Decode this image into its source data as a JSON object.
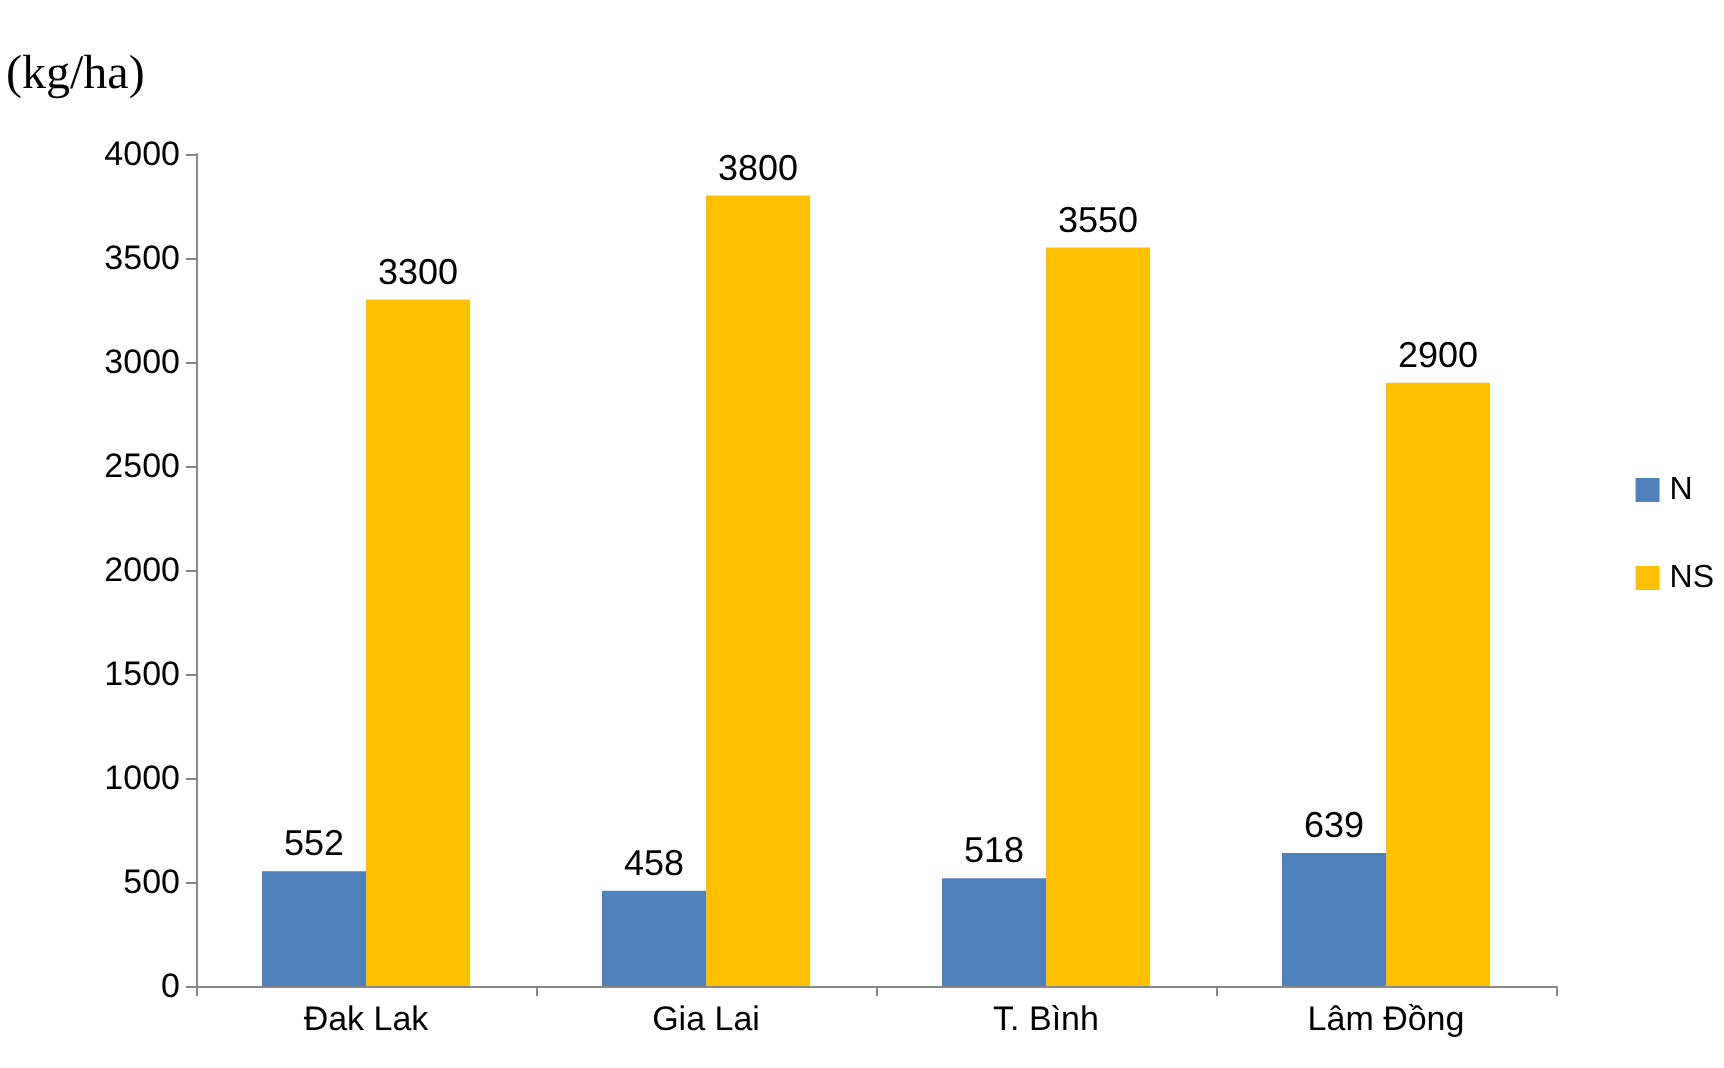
{
  "chart_data": {
    "type": "bar",
    "ylabel": "(kg/ha)",
    "categories": [
      "Đak Lak",
      "Gia Lai",
      "T. Bình",
      "Lâm Đồng"
    ],
    "series": [
      {
        "name": "N",
        "color": "#4f81bd",
        "values": [
          552,
          458,
          518,
          639
        ]
      },
      {
        "name": "NS",
        "color": "#ffc000",
        "values": [
          3300,
          3800,
          3550,
          2900
        ]
      }
    ],
    "ylim": [
      0,
      4000
    ],
    "yticks": [
      0,
      500,
      1000,
      1500,
      2000,
      2500,
      3000,
      3500,
      4000
    ],
    "grid": false,
    "legend": "right",
    "data_labels": true
  }
}
